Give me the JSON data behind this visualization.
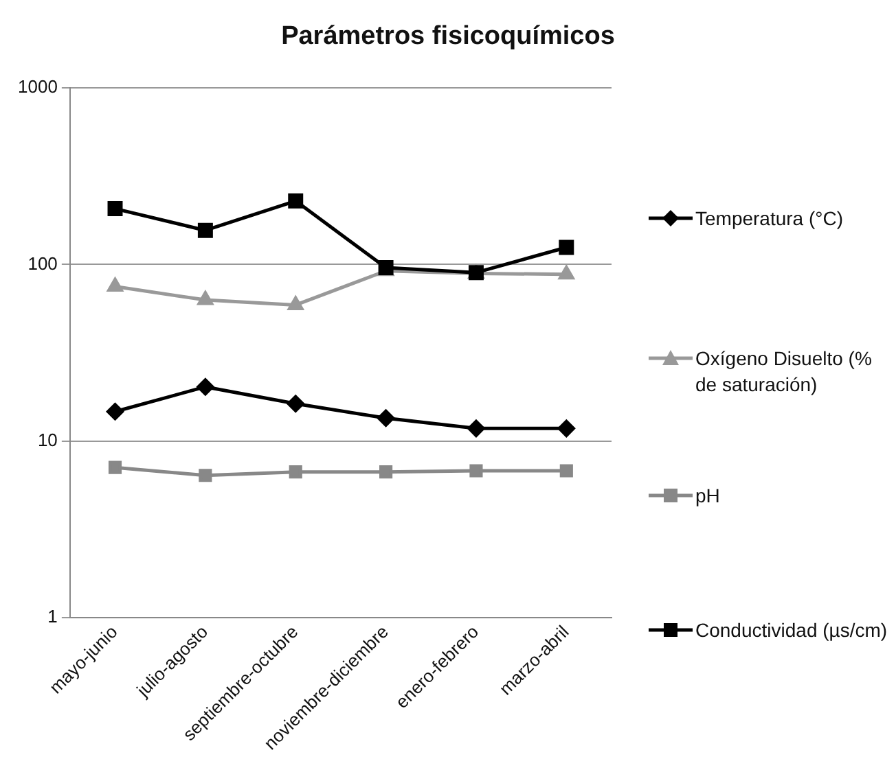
{
  "chart_data": {
    "type": "line",
    "title": "Parámetros fisicoquímicos",
    "categories": [
      "mayo-junio",
      "julio-agosto",
      "septiembre-octubre",
      "noviembre-diciembre",
      "enero-febrero",
      "marzo-abril"
    ],
    "series": [
      {
        "name": "Temperatura (°C)",
        "color": "#000000",
        "marker": "diamond",
        "values": [
          14.7,
          20.3,
          16.3,
          13.5,
          11.8,
          11.8
        ]
      },
      {
        "name": "Oxígeno Disuelto (% de saturación)",
        "color": "#999999",
        "marker": "triangle",
        "values": [
          75,
          63,
          59,
          92,
          89,
          88
        ]
      },
      {
        "name": "pH",
        "color": "#888888",
        "marker": "square",
        "values": [
          7.1,
          6.4,
          6.7,
          6.7,
          6.8,
          6.8
        ]
      },
      {
        "name": "Conductividad (µs/cm)",
        "color": "#000000",
        "marker": "square",
        "values": [
          207,
          156,
          229,
          96,
          90,
          125
        ]
      }
    ],
    "ylim": [
      1,
      1000
    ],
    "yticks": [
      1,
      10,
      100,
      1000
    ],
    "log": true,
    "grid": "y",
    "legend": "right"
  }
}
